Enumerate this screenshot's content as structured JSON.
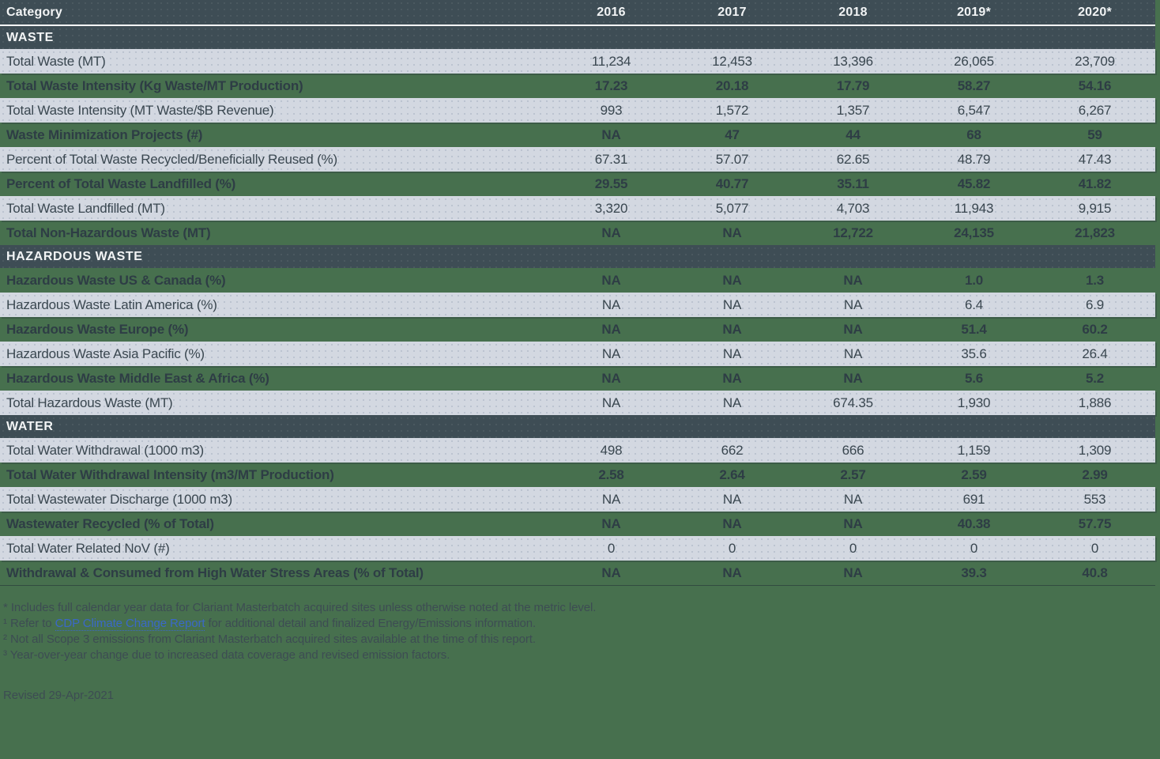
{
  "chart_data": {
    "type": "table",
    "columns": [
      "Category",
      "2016",
      "2017",
      "2018",
      "2019*",
      "2020*"
    ],
    "sections": [
      {
        "title": "WASTE",
        "zebra_start": "light",
        "rows": [
          {
            "label": "Total Waste (MT)",
            "values": [
              "11,234",
              "12,453",
              "13,396",
              "26,065",
              "23,709"
            ]
          },
          {
            "label": "Total Waste Intensity (Kg Waste/MT Production)",
            "values": [
              "17.23",
              "20.18",
              "17.79",
              "58.27",
              "54.16"
            ]
          },
          {
            "label": "Total Waste Intensity (MT Waste/$B Revenue)",
            "values": [
              "993",
              "1,572",
              "1,357",
              "6,547",
              "6,267"
            ]
          },
          {
            "label": "Waste Minimization Projects (#)",
            "values": [
              "NA",
              "47",
              "44",
              "68",
              "59"
            ]
          },
          {
            "label": "Percent of Total Waste Recycled/Beneficially Reused (%)",
            "values": [
              "67.31",
              "57.07",
              "62.65",
              "48.79",
              "47.43"
            ]
          },
          {
            "label": "Percent of Total Waste Landfilled (%)",
            "values": [
              "29.55",
              "40.77",
              "35.11",
              "45.82",
              "41.82"
            ]
          },
          {
            "label": "Total Waste Landfilled (MT)",
            "values": [
              "3,320",
              "5,077",
              "4,703",
              "11,943",
              "9,915"
            ]
          },
          {
            "label": "Total Non-Hazardous Waste (MT)",
            "values": [
              "NA",
              "NA",
              "12,722",
              "24,135",
              "21,823"
            ]
          }
        ]
      },
      {
        "title": "HAZARDOUS WASTE",
        "zebra_start": "green",
        "rows": [
          {
            "label": "Hazardous Waste US & Canada (%)",
            "values": [
              "NA",
              "NA",
              "NA",
              "1.0",
              "1.3"
            ]
          },
          {
            "label": "Hazardous Waste Latin America (%)",
            "values": [
              "NA",
              "NA",
              "NA",
              "6.4",
              "6.9"
            ]
          },
          {
            "label": "Hazardous Waste Europe (%)",
            "values": [
              "NA",
              "NA",
              "NA",
              "51.4",
              "60.2"
            ]
          },
          {
            "label": "Hazardous Waste Asia Pacific (%)",
            "values": [
              "NA",
              "NA",
              "NA",
              "35.6",
              "26.4"
            ]
          },
          {
            "label": "Hazardous Waste Middle East & Africa (%)",
            "values": [
              "NA",
              "NA",
              "NA",
              "5.6",
              "5.2"
            ]
          },
          {
            "label": "Total Hazardous Waste (MT)",
            "values": [
              "NA",
              "NA",
              "674.35",
              "1,930",
              "1,886"
            ]
          }
        ]
      },
      {
        "title": "WATER",
        "zebra_start": "light",
        "rows": [
          {
            "label": "Total Water Withdrawal (1000 m3)",
            "values": [
              "498",
              "662",
              "666",
              "1,159",
              "1,309"
            ]
          },
          {
            "label": "Total Water Withdrawal Intensity (m3/MT Production)",
            "values": [
              "2.58",
              "2.64",
              "2.57",
              "2.59",
              "2.99"
            ]
          },
          {
            "label": "Total Wastewater Discharge (1000 m3)",
            "values": [
              "NA",
              "NA",
              "NA",
              "691",
              "553"
            ]
          },
          {
            "label": "Wastewater Recycled (% of Total)",
            "values": [
              "NA",
              "NA",
              "NA",
              "40.38",
              "57.75"
            ]
          },
          {
            "label": "Total Water Related NoV (#)",
            "values": [
              "0",
              "0",
              "0",
              "0",
              "0"
            ]
          },
          {
            "label": "Withdrawal & Consumed from High Water Stress Areas (% of Total)",
            "values": [
              "NA",
              "NA",
              "NA",
              "39.3",
              "40.8"
            ]
          }
        ]
      }
    ]
  },
  "footnotes": [
    {
      "marker": "*",
      "pre": " Includes full calendar year data for Clariant Masterbatch acquired sites unless otherwise noted at the metric level.",
      "link": "",
      "post": ""
    },
    {
      "marker": "¹",
      "pre": " Refer to ",
      "link": "CDP Climate Change Report",
      "post": " for additional detail and finalized Energy/Emissions information."
    },
    {
      "marker": "²",
      "pre": " Not all Scope 3 emissions from Clariant Masterbatch acquired sites available at the time of this report.",
      "link": "",
      "post": ""
    },
    {
      "marker": "³",
      "pre": " Year-over-year change due to increased data coverage and revised emission factors.",
      "link": "",
      "post": ""
    }
  ],
  "revised": "Revised 29-Apr-2021",
  "colors": {
    "page_background": "#47704E",
    "header_band": "#3E4D55",
    "light_row": "#D3D8E1",
    "light_row_text": "#3A4750",
    "green_row_text": "#2E3D45",
    "header_text": "#F2F4F5",
    "footnote_text": "#3D4C53",
    "link": "#3A68C8",
    "header_underline": "#FFFFFF"
  }
}
